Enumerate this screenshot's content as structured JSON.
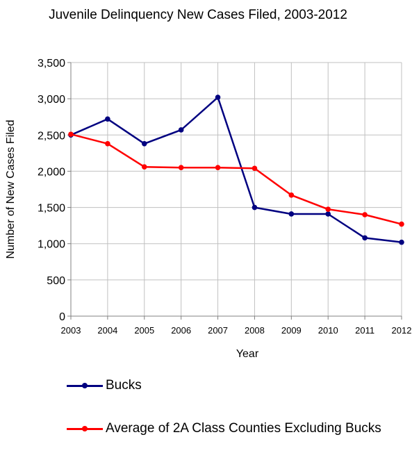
{
  "chart_data": {
    "type": "line",
    "title": "Juvenile Delinquency New Cases Filed, 2003-2012",
    "xlabel": "Year",
    "ylabel": "Number of New Cases Filed",
    "categories": [
      "2003",
      "2004",
      "2005",
      "2006",
      "2007",
      "2008",
      "2009",
      "2010",
      "2011",
      "2012"
    ],
    "ylim": [
      0,
      3500
    ],
    "yticks": [
      0,
      500,
      1000,
      1500,
      2000,
      2500,
      3000,
      3500
    ],
    "ytick_labels": [
      "0",
      "500",
      "1,000",
      "1,500",
      "2,000",
      "2,500",
      "3,000",
      "3,500"
    ],
    "grid": true,
    "legend_position": "bottom",
    "series": [
      {
        "name": "Bucks",
        "color": "#000080",
        "values": [
          2500,
          2720,
          2380,
          2570,
          3020,
          1500,
          1410,
          1410,
          1080,
          1020
        ]
      },
      {
        "name": "Average of 2A Class Counties Excluding Bucks",
        "color": "#ff0000",
        "values": [
          2510,
          2380,
          2060,
          2050,
          2050,
          2040,
          1670,
          1475,
          1400,
          1270
        ]
      }
    ]
  }
}
